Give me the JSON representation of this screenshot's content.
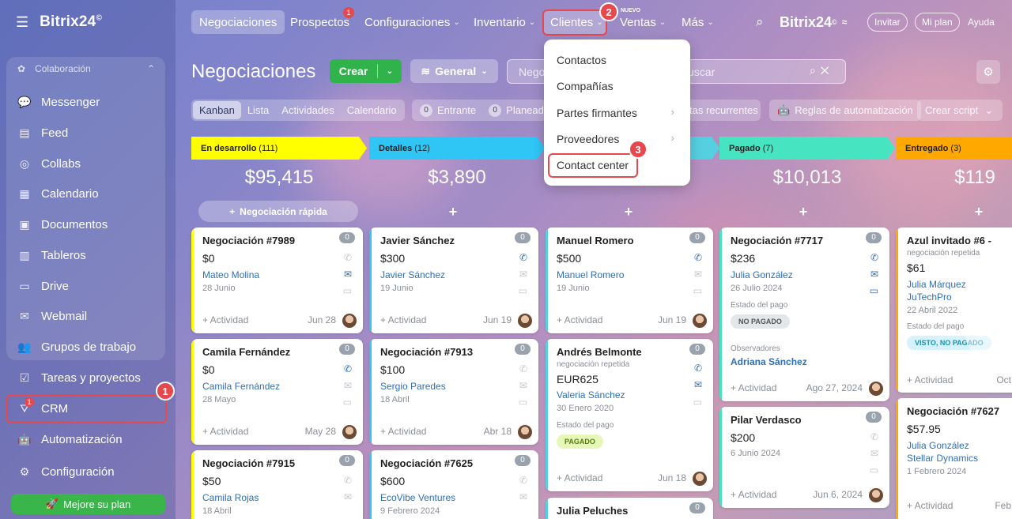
{
  "app": {
    "brand": "Bitrix24",
    "brand_mark": "©"
  },
  "sidebar": {
    "section_label": "Colaboración",
    "items": [
      {
        "label": "Messenger",
        "icon": "chat-icon"
      },
      {
        "label": "Feed",
        "icon": "feed-icon"
      },
      {
        "label": "Collabs",
        "icon": "collabs-icon"
      },
      {
        "label": "Calendario",
        "icon": "calendar-icon"
      },
      {
        "label": "Documentos",
        "icon": "document-icon"
      },
      {
        "label": "Tableros",
        "icon": "board-icon"
      },
      {
        "label": "Drive",
        "icon": "drive-icon"
      },
      {
        "label": "Webmail",
        "icon": "mail-icon"
      },
      {
        "label": "Grupos de trabajo",
        "icon": "group-icon"
      }
    ],
    "tasks": "Tareas y proyectos",
    "crm": "CRM",
    "crm_badge": "1",
    "automation": "Automatización",
    "settings": "Configuración",
    "upgrade": "Mejore su plan"
  },
  "topnav": {
    "items": [
      "Negociaciones",
      "Prospectos",
      "Configuraciones",
      "Inventario",
      "Clientes",
      "Ventas",
      "Más"
    ],
    "prospectos_badge": "1",
    "nuevo": "NUEVO",
    "brand": "Bitrix24",
    "invitar": "Invitar",
    "mi_plan": "Mi plan",
    "ayuda": "Ayuda"
  },
  "steps": [
    "1",
    "2",
    "3"
  ],
  "toolbar": {
    "title": "Negociaciones",
    "crear": "Crear",
    "general": "General",
    "search_chip": "Nego",
    "search_placeholder": "uscar"
  },
  "views": {
    "tabs": [
      "Kanban",
      "Lista",
      "Actividades",
      "Calendario"
    ],
    "counters": [
      {
        "count": "0",
        "label": "Entrante"
      },
      {
        "count": "0",
        "label": "Planeado"
      }
    ],
    "recurrentes": "tas recurrentes",
    "reglas": "Reglas de automatización",
    "crear_script": "Crear script"
  },
  "dropdown": {
    "items": [
      "Contactos",
      "Compañías",
      "Partes firmantes",
      "Proveedores",
      "Contact center"
    ]
  },
  "columns": [
    {
      "stage": "En desarrollo",
      "count": "(111)",
      "total": "$95,415",
      "color": "#ffff00",
      "quick": "Negociación rápida"
    },
    {
      "stage": "Detalles",
      "count": "(12)",
      "total": "$3,890",
      "color": "#2fc6f6"
    },
    {
      "stage": "",
      "count": "",
      "total": "",
      "color": "#55d0e0"
    },
    {
      "stage": "Pagado",
      "count": "(7)",
      "total": "$10,013",
      "color": "#47e4c2"
    },
    {
      "stage": "Entregado",
      "count": "(3)",
      "total": "$119",
      "color": "#ffa900"
    }
  ],
  "cards": {
    "c1": {
      "title": "Negociación #7989",
      "badge": "0",
      "amount": "$0",
      "link": "Mateo Molina",
      "date": "28 Junio",
      "act": "+ Actividad",
      "adate": "Jun 28"
    },
    "c2": {
      "title": "Camila Fernández",
      "badge": "0",
      "amount": "$0",
      "link": "Camila Fernández",
      "date": "28 Mayo",
      "act": "+ Actividad",
      "adate": "May 28"
    },
    "c3": {
      "title": "Negociación #7915",
      "badge": "0",
      "amount": "$50",
      "link": "Camila Rojas",
      "date": "18 Abril"
    },
    "d1": {
      "title": "Javier Sánchez",
      "badge": "0",
      "amount": "$300",
      "link": "Javier Sánchez",
      "date": "19 Junio",
      "act": "+ Actividad",
      "adate": "Jun 19"
    },
    "d2": {
      "title": "Negociación #7913",
      "badge": "0",
      "amount": "$100",
      "link": "Sergio Paredes",
      "date": "18 Abril",
      "act": "+ Actividad",
      "adate": "Abr 18"
    },
    "d3": {
      "title": "Negociación #7625",
      "badge": "0",
      "amount": "$600",
      "link": "EcoVibe Ventures",
      "date": "9 Febrero 2024"
    },
    "e1": {
      "title": "Manuel Romero",
      "badge": "0",
      "amount": "$500",
      "link": "Manuel Romero",
      "date": "19 Junio",
      "act": "+ Actividad",
      "adate": "Jun 19"
    },
    "e2": {
      "title": "Andrés Belmonte",
      "sub": "negociación repetida",
      "badge": "0",
      "amount": "EUR625",
      "link": "Valeria Sánchez",
      "date": "30 Enero 2020",
      "label": "Estado del pago",
      "tag": "PAGADO",
      "act": "+ Actividad",
      "adate": "Jun 18"
    },
    "e3": {
      "title": "Julia Peluches",
      "badge": "0"
    },
    "f1": {
      "title": "Negociación #7717",
      "badge": "0",
      "amount": "$236",
      "link": "Julia González",
      "date": "26 Julio 2024",
      "label": "Estado del pago",
      "tag": "NO PAGADO",
      "label2": "Observadores",
      "link2": "Adriana Sánchez",
      "act": "+ Actividad",
      "adate": "Ago 27, 2024"
    },
    "f2": {
      "title": "Pilar Verdasco",
      "badge": "0",
      "amount": "$200",
      "date": "6 Junio 2024",
      "act": "+ Actividad",
      "adate": "Jun 6, 2024"
    },
    "g1": {
      "title": "Azul invitado #6 -",
      "sub": "negociación repetida",
      "amount": "$61",
      "link": "Julia Márquez",
      "link2": "JuTechPro",
      "date": "22 Abril 2022",
      "label": "Estado del pago",
      "tag": "VISTO, NO PAGADO",
      "act": "+ Actividad",
      "adate": "Oct"
    },
    "g2": {
      "title": "Negociación #7627",
      "amount": "$57.95",
      "link": "Julia González",
      "link2": "Stellar Dynamics",
      "date": "1 Febrero 2024",
      "act": "+ Actividad",
      "adate": "Feb"
    }
  }
}
